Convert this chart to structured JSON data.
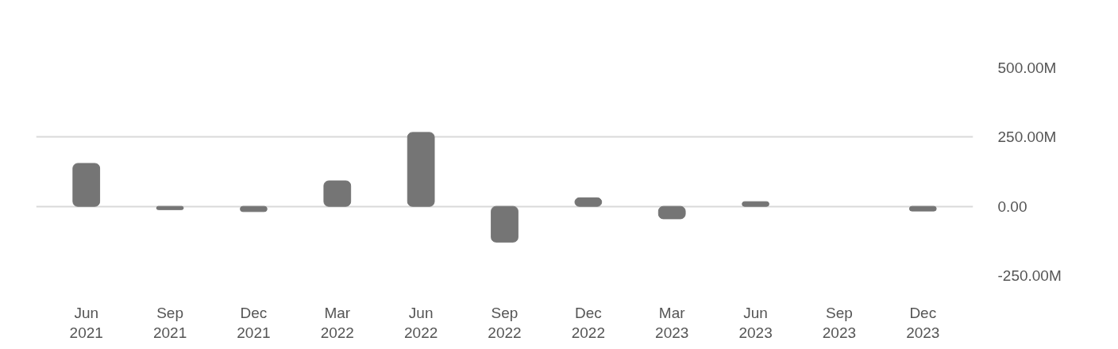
{
  "chart_data": {
    "type": "bar",
    "categories": [
      "Jun 2021",
      "Sep 2021",
      "Dec 2021",
      "Mar 2022",
      "Jun 2022",
      "Sep 2022",
      "Dec 2022",
      "Mar 2023",
      "Jun 2023",
      "Sep 2023",
      "Dec 2023"
    ],
    "values": [
      155,
      -12,
      -19,
      92,
      267,
      -129,
      31,
      -45,
      17,
      null,
      -17
    ],
    "color": "#757575",
    "ylim": [
      -250,
      500
    ],
    "yticks": [
      {
        "value": -250,
        "label": "-250.00M"
      },
      {
        "value": 0,
        "label": "0.00"
      },
      {
        "value": 250,
        "label": "250.00M"
      },
      {
        "value": 500,
        "label": "500.00M"
      }
    ],
    "grid": "y"
  }
}
